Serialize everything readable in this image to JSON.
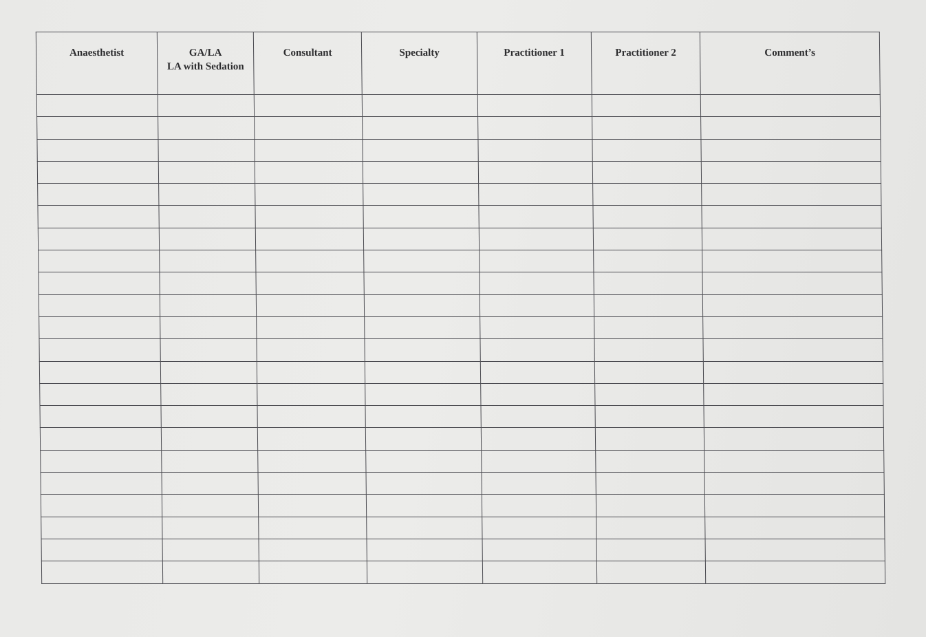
{
  "form": {
    "columns": [
      "Anaesthetist",
      "GA/LA\nLA with Sedation",
      "Consultant",
      "Specialty",
      "Practitioner 1",
      "Practitioner 2",
      "Comment’s"
    ],
    "row_count": 22
  }
}
